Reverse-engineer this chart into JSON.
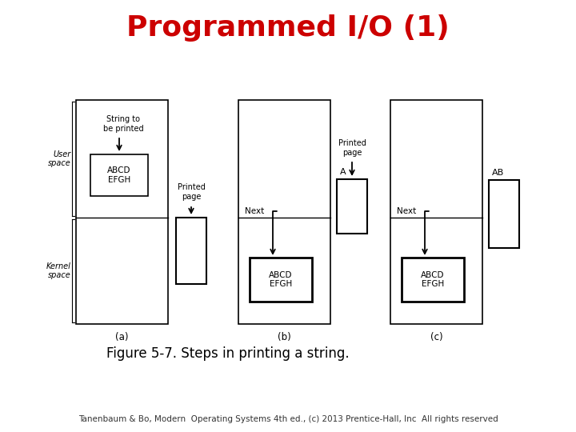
{
  "title": "Programmed I/O (1)",
  "title_color": "#cc0000",
  "title_fontsize": 26,
  "figure_caption": "Figure 5-7. Steps in printing a string.",
  "caption_fontsize": 12,
  "footer": "Tanenbaum & Bo, Modern  Operating Systems 4th ed., (c) 2013 Prentice-Hall, Inc  All rights reserved",
  "footer_fontsize": 7.5,
  "bg_color": "#ffffff",
  "diagram_labels": [
    "(a)",
    "(b)",
    "(c)"
  ]
}
